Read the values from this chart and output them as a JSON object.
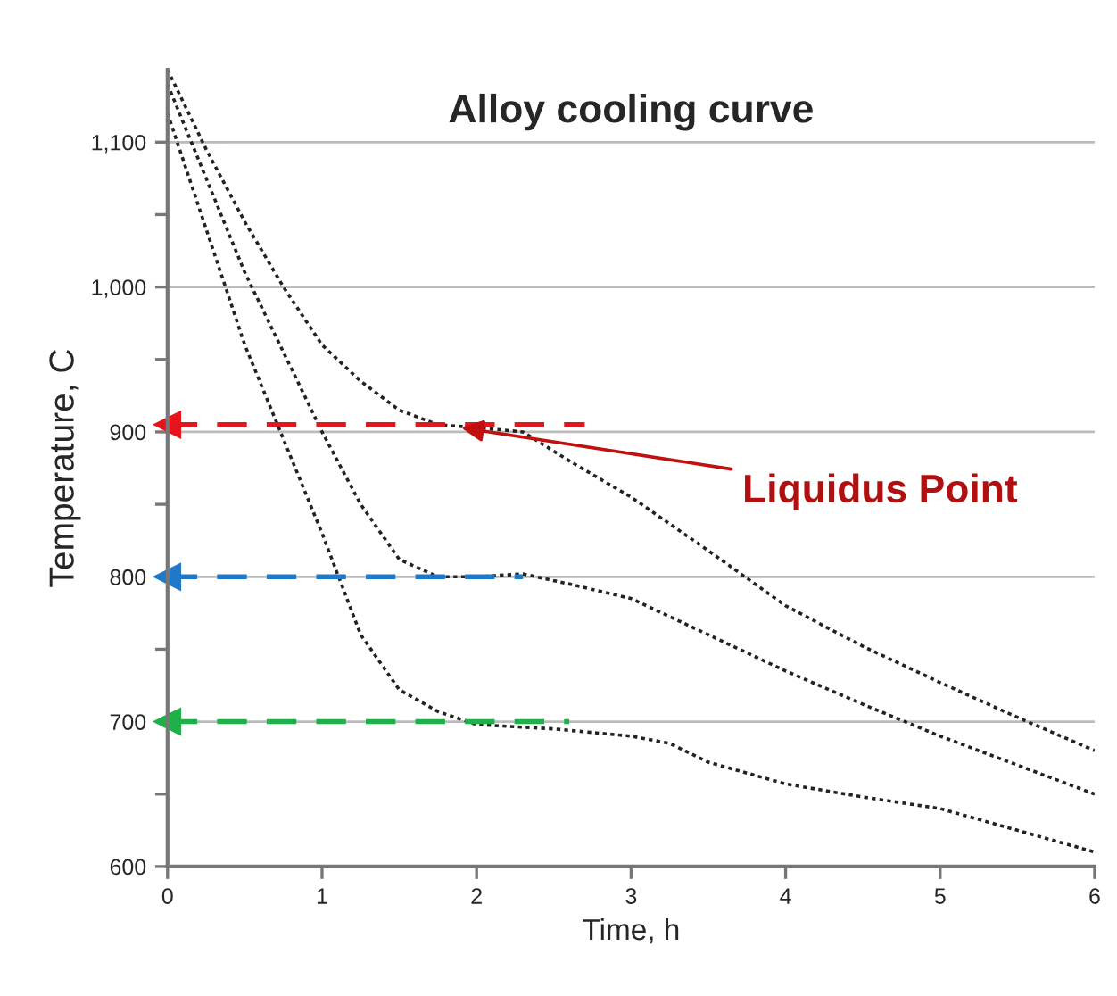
{
  "chart_data": {
    "type": "line",
    "title": "Alloy cooling curve",
    "xlabel": "Time, h",
    "ylabel": "Temperature, C",
    "xlim": [
      0,
      6
    ],
    "ylim": [
      600,
      1150
    ],
    "xticks": [
      0,
      1,
      2,
      3,
      4,
      5,
      6
    ],
    "yticks": [
      600,
      {
        "value": 650,
        "label": null
      },
      700,
      {
        "value": 750,
        "label": null
      },
      800,
      {
        "value": 850,
        "label": null
      },
      900,
      {
        "value": 950,
        "label": null
      },
      {
        "value": 1000,
        "label": "1,000"
      },
      {
        "value": 1050,
        "label": null
      },
      {
        "value": 1100,
        "label": "1,100"
      }
    ],
    "grid": "y",
    "line_style": "dotted",
    "marker": "none",
    "series": [
      {
        "color": "#222222",
        "x": [
          0,
          0.25,
          0.5,
          0.75,
          1,
          1.25,
          1.5,
          1.75,
          2,
          2.3,
          2.6,
          3,
          3.5,
          4,
          4.5,
          5,
          5.5,
          6
        ],
        "values": [
          1150,
          1095,
          1045,
          1000,
          960,
          935,
          915,
          905,
          903,
          900,
          880,
          855,
          818,
          780,
          752,
          727,
          703,
          680
        ]
      },
      {
        "color": "#222222",
        "x": [
          0,
          0.25,
          0.5,
          0.75,
          1,
          1.25,
          1.5,
          1.75,
          2,
          2.3,
          2.6,
          3,
          3.5,
          4,
          4.5,
          5,
          5.5,
          6
        ],
        "values": [
          1140,
          1075,
          1010,
          955,
          900,
          850,
          812,
          800,
          800,
          802,
          795,
          785,
          760,
          735,
          712,
          690,
          670,
          650
        ]
      },
      {
        "color": "#222222",
        "x": [
          0,
          0.25,
          0.5,
          0.75,
          1,
          1.25,
          1.5,
          1.75,
          2,
          2.5,
          3,
          3.25,
          3.5,
          4,
          4.5,
          5,
          5.5,
          6
        ],
        "values": [
          1120,
          1040,
          960,
          895,
          830,
          760,
          722,
          707,
          698,
          695,
          690,
          685,
          672,
          657,
          648,
          640,
          625,
          610
        ]
      },
      {
        "type": "line",
        "color": "#e8141c",
        "line_style": "dashed",
        "marker": "triangle",
        "x": [
          0,
          2.7
        ],
        "values": [
          905,
          905
        ]
      },
      {
        "type": "line",
        "color": "#1f78c8",
        "line_style": "dashed",
        "marker": "triangle",
        "x": [
          0,
          2.3
        ],
        "values": [
          800,
          800
        ]
      },
      {
        "type": "line",
        "color": "#1fb04a",
        "line_style": "dashed",
        "marker": "triangle",
        "x": [
          0,
          2.6
        ],
        "values": [
          700,
          700
        ]
      }
    ],
    "annotations": [
      {
        "text": "Liquidus Point",
        "x": 1.9,
        "y": 903
      }
    ]
  }
}
